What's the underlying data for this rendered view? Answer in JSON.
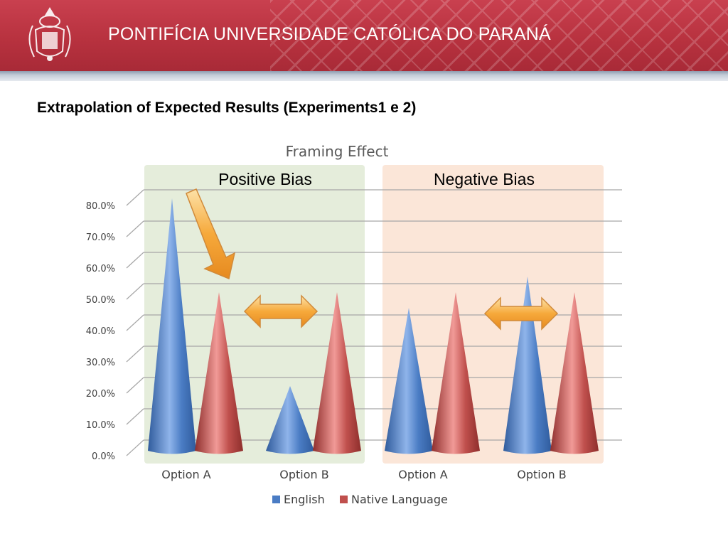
{
  "header": {
    "university_name": "PONTIFÍCIA UNIVERSIDADE CATÓLICA DO PARANÁ",
    "brand_color": "#b8323f"
  },
  "slide": {
    "title": "Extrapolation of Expected Results (Experiments1 e 2)"
  },
  "chart_data": {
    "type": "bar",
    "shape": "cone",
    "title": "Framing Effect",
    "xlabel": "",
    "ylabel": "",
    "ylim": [
      0,
      0.8
    ],
    "y_ticks": [
      "0.0%",
      "10.0%",
      "20.0%",
      "30.0%",
      "40.0%",
      "50.0%",
      "60.0%",
      "70.0%",
      "80.0%"
    ],
    "categories": [
      "Option A",
      "Option B",
      "Option A",
      "Option B"
    ],
    "series": [
      {
        "name": "English",
        "color": "#4a7cc4",
        "values": [
          0.8,
          0.2,
          0.45,
          0.55
        ]
      },
      {
        "name": "Native Language",
        "color": "#c0504d",
        "values": [
          0.5,
          0.5,
          0.5,
          0.5
        ]
      }
    ],
    "grid": true,
    "legend_position": "bottom",
    "annotations": {
      "groups": [
        {
          "label": "Positive Bias",
          "color": "#e4ecd9"
        },
        {
          "label": "Negative Bias",
          "color": "#fbe5d6"
        }
      ],
      "arrow_color": "#f6a93b"
    }
  }
}
